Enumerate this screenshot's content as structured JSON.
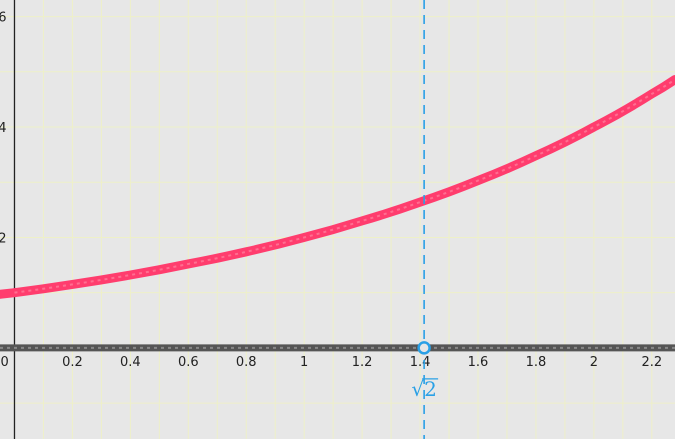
{
  "chart_data": {
    "type": "line",
    "title": "",
    "xlabel": "",
    "ylabel": "",
    "xlim": [
      -0.05,
      2.28
    ],
    "ylim": [
      -1.65,
      6.3
    ],
    "grid": true,
    "x_ticks": [
      {
        "value": 0,
        "label": "0"
      },
      {
        "value": 0.2,
        "label": "0.2"
      },
      {
        "value": 0.4,
        "label": "0.4"
      },
      {
        "value": 0.6,
        "label": "0.6"
      },
      {
        "value": 0.8,
        "label": "0.8"
      },
      {
        "value": 1,
        "label": "1"
      },
      {
        "value": 1.2,
        "label": "1.2"
      },
      {
        "value": 1.4,
        "label": "1.4"
      },
      {
        "value": 1.6,
        "label": "1.6"
      },
      {
        "value": 1.8,
        "label": "1.8"
      },
      {
        "value": 2,
        "label": "2"
      },
      {
        "value": 2.2,
        "label": "2.2"
      }
    ],
    "y_ticks": [
      {
        "value": 2,
        "label": "2"
      },
      {
        "value": 4,
        "label": "4"
      },
      {
        "value": 6,
        "label": "6"
      }
    ],
    "series": [
      {
        "color": "#ff3d6e",
        "x": [
          0,
          0.2,
          0.4,
          0.6,
          0.8,
          1.0,
          1.2,
          1.4,
          1.6,
          1.8,
          2.0,
          2.2,
          2.28
        ],
        "y": [
          1.0,
          1.15,
          1.32,
          1.52,
          1.74,
          2.0,
          2.3,
          2.64,
          3.03,
          3.48,
          4.0,
          4.6,
          4.86
        ]
      },
      {
        "color": "#555555",
        "x": [
          -0.05,
          2.28
        ],
        "y": [
          0,
          0
        ]
      }
    ],
    "annotations": [
      {
        "type": "vertical-dashed-line",
        "x": 1.414,
        "color": "#2aa0e6"
      },
      {
        "type": "point",
        "x": 1.414,
        "y": 0,
        "label": "√2",
        "color": "#2aa0e6"
      }
    ]
  }
}
